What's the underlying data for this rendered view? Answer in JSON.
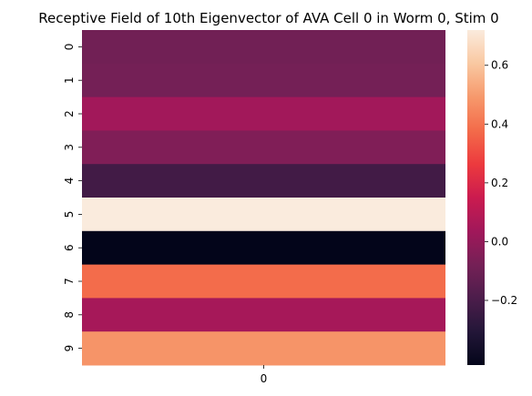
{
  "chart_data": {
    "type": "heatmap",
    "title": "Receptive Field of 10th Eigenvector of AVA Cell 0 in Worm 0, Stim 0",
    "xlabel": "",
    "ylabel": "",
    "x_categories": [
      "0"
    ],
    "y_categories": [
      "0",
      "1",
      "2",
      "3",
      "4",
      "5",
      "6",
      "7",
      "8",
      "9"
    ],
    "values": [
      -0.09,
      -0.08,
      0.04,
      -0.05,
      -0.22,
      0.72,
      -0.42,
      0.38,
      0.05,
      0.48
    ],
    "colormap": "rocket",
    "vmin": -0.42,
    "vmax": 0.72,
    "colorbar": {
      "ticks": [
        -0.2,
        0.0,
        0.2,
        0.4,
        0.6
      ],
      "tick_labels": [
        "−0.2",
        "0.0",
        "0.2",
        "0.4",
        "0.6"
      ]
    }
  }
}
